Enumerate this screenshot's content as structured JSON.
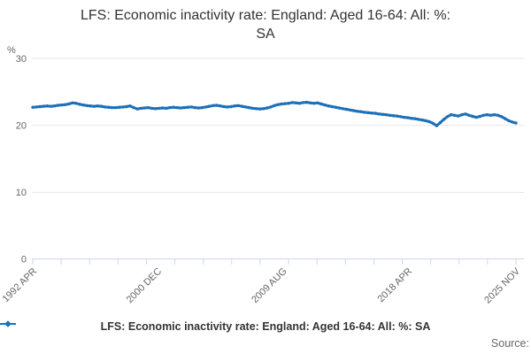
{
  "title": {
    "line1": "LFS: Economic inactivity rate: England: Aged 16-64: All: %:",
    "line2": "SA"
  },
  "y_axis": {
    "unit_label": "%",
    "tick_labels": [
      "30",
      "20",
      "10",
      "0"
    ]
  },
  "x_axis": {
    "tick_labels": [
      "1992 APR",
      "2000 DEC",
      "2009 AUG",
      "2018 APR",
      "2025 NOV"
    ]
  },
  "legend": {
    "series_label": "LFS: Economic inactivity rate: England: Aged 16-64: All: %: SA"
  },
  "footer": {
    "source_label": "Source:"
  },
  "colors": {
    "series_line": "#1d70b8",
    "gridline": "#e6e6e6",
    "axis_line": "#ccd6eb",
    "axis_text": "#666666",
    "title_text": "#333333",
    "legend_text": "#333333"
  },
  "chart_data": {
    "type": "line",
    "title": "LFS: Economic inactivity rate: England: Aged 16-64: All: %: SA",
    "ylabel": "%",
    "ylim": [
      0,
      30
    ],
    "gridlines_y": [
      10,
      20,
      30
    ],
    "grid": true,
    "legend_position": "bottom",
    "x_start": "1992 APR",
    "x_end": "2025 NOV",
    "frequency": "quarterly",
    "x_tick_labels": [
      "1992 APR",
      "2000 DEC",
      "2009 AUG",
      "2018 APR",
      "2025 NOV"
    ],
    "series": [
      {
        "name": "LFS: Economic inactivity rate: England: Aged 16-64: All: %: SA",
        "color": "#1d70b8",
        "values": [
          22.7,
          22.75,
          22.8,
          22.85,
          22.9,
          22.85,
          22.9,
          23.0,
          23.05,
          23.1,
          23.2,
          23.35,
          23.3,
          23.15,
          23.05,
          22.95,
          22.9,
          22.85,
          22.9,
          22.85,
          22.75,
          22.7,
          22.65,
          22.65,
          22.7,
          22.75,
          22.8,
          22.9,
          22.65,
          22.45,
          22.55,
          22.6,
          22.65,
          22.55,
          22.5,
          22.55,
          22.6,
          22.55,
          22.65,
          22.7,
          22.65,
          22.6,
          22.65,
          22.7,
          22.75,
          22.65,
          22.6,
          22.65,
          22.75,
          22.85,
          22.95,
          23.0,
          22.9,
          22.8,
          22.75,
          22.8,
          22.9,
          22.95,
          22.85,
          22.75,
          22.65,
          22.55,
          22.5,
          22.45,
          22.5,
          22.6,
          22.75,
          22.95,
          23.1,
          23.2,
          23.25,
          23.3,
          23.4,
          23.35,
          23.3,
          23.4,
          23.45,
          23.35,
          23.3,
          23.35,
          23.2,
          23.05,
          22.9,
          22.8,
          22.7,
          22.6,
          22.5,
          22.4,
          22.3,
          22.2,
          22.1,
          22.05,
          21.95,
          21.9,
          21.85,
          21.8,
          21.7,
          21.65,
          21.6,
          21.5,
          21.45,
          21.4,
          21.3,
          21.2,
          21.15,
          21.05,
          21.0,
          20.9,
          20.8,
          20.7,
          20.55,
          20.3,
          19.95,
          20.4,
          20.9,
          21.3,
          21.6,
          21.5,
          21.4,
          21.6,
          21.7,
          21.5,
          21.35,
          21.2,
          21.35,
          21.5,
          21.6,
          21.5,
          21.6,
          21.5,
          21.3,
          21.0,
          20.7,
          20.5,
          20.35
        ]
      }
    ]
  }
}
